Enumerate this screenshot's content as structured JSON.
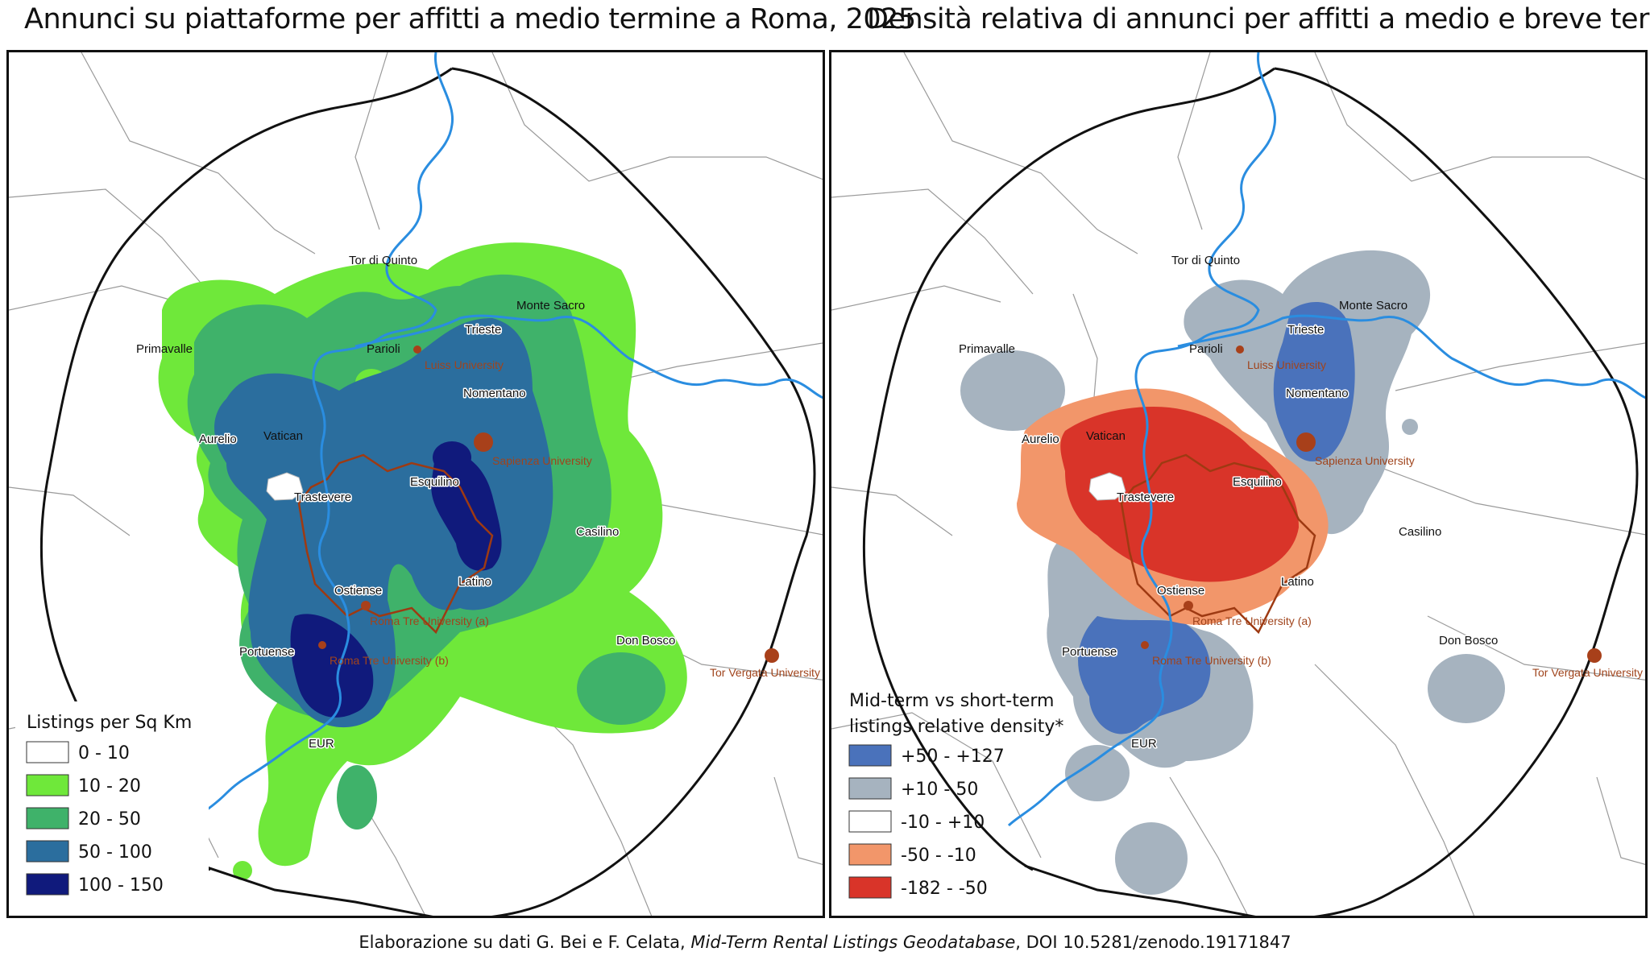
{
  "titles": {
    "left": "Annunci su piattaforme per affitti a medio termine a Roma, 2025",
    "right": "Densità relativa di annunci per affitti a medio e breve termine"
  },
  "place_labels": {
    "tor_di_quinto": "Tor di Quinto",
    "monte_sacro": "Monte Sacro",
    "primavalle": "Primavalle",
    "parioli": "Parioli",
    "trieste": "Trieste",
    "nomentano": "Nomentano",
    "aurelio": "Aurelio",
    "vatican": "Vatican",
    "esquilino": "Esquilino",
    "trastevere": "Trastevere",
    "casilino": "Casilino",
    "latino": "Latino",
    "ostiense": "Ostiense",
    "portuense": "Portuense",
    "don_bosco": "Don Bosco",
    "eur": "EUR"
  },
  "universities": {
    "luiss": "Luiss University",
    "sapienza": "Sapienza University",
    "roma_tre_a": "Roma Tre University (a)",
    "roma_tre_b": "Roma Tre University (b)",
    "tor_vergata": "Tor Vergata University"
  },
  "legend_left": {
    "title": "Listings per Sq Km",
    "classes": [
      {
        "label": "0 - 10",
        "color": "#ffffff"
      },
      {
        "label": "10 - 20",
        "color": "#6fe83a"
      },
      {
        "label": "20 - 50",
        "color": "#3fb26a"
      },
      {
        "label": "50 - 100",
        "color": "#2b6e9e"
      },
      {
        "label": "100 - 150",
        "color": "#101a7c"
      }
    ]
  },
  "legend_right": {
    "title_line1": "Mid-term vs short-term",
    "title_line2": "listings relative density*",
    "classes": [
      {
        "label": "+50 - +127",
        "color": "#4a72bb"
      },
      {
        "label": "+10 - 50",
        "color": "#a6b3bf"
      },
      {
        "label": "-10 - +10",
        "color": "#ffffff"
      },
      {
        "label": "-50 - -10",
        "color": "#f2966a"
      },
      {
        "label": "-182 - -50",
        "color": "#d93429"
      }
    ]
  },
  "colors": {
    "river": "#2a8de0",
    "historic_center": "#9e3a12",
    "university_dot": "#a8401a",
    "roads": "#9a9a9a",
    "ring_road": "#111111"
  },
  "footer": {
    "prefix": "Elaborazione su dati G. Bei e F. Celata,",
    "italic": "Mid-Term Rental Listings Geodatabase",
    "suffix": ", DOI 10.5281/zenodo.19171847"
  }
}
